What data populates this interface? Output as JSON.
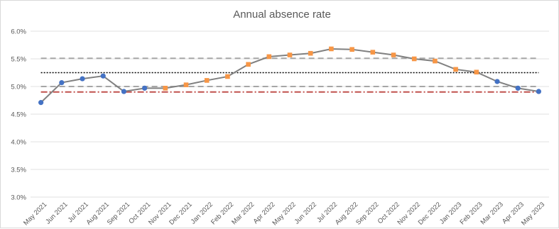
{
  "chart_data": {
    "type": "line",
    "title": "Annual absence rate",
    "xlabel": "",
    "ylabel": "",
    "categories": [
      "May 2021",
      "Jun 2021",
      "Jul 2021",
      "Aug 2021",
      "Sep 2021",
      "Oct 2021",
      "Nov 2021",
      "Dec 2021",
      "Jan 2022",
      "Feb 2022",
      "Mar 2022",
      "Apr 2022",
      "May 2022",
      "Jun 2022",
      "Jul 2022",
      "Aug 2022",
      "Sep 2022",
      "Oct 2022",
      "Nov 2022",
      "Dec 2022",
      "Jan 2023",
      "Feb 2023",
      "Mar 2023",
      "Apr 2023",
      "May 2023"
    ],
    "y_ticks": [
      "3.0%",
      "3.5%",
      "4.0%",
      "4.5%",
      "5.0%",
      "5.5%",
      "6.0%"
    ],
    "ylim": [
      0.03,
      0.06
    ],
    "grid": "horizontal",
    "series": [
      {
        "values": [
          0.0471,
          0.0507,
          0.0514,
          0.0519,
          0.0491,
          0.0497,
          0.0497,
          0.0503,
          0.0511,
          0.0518,
          0.054,
          0.0554,
          0.0557,
          0.056,
          0.0568,
          0.0567,
          0.0562,
          0.0557,
          0.055,
          0.0546,
          0.0531,
          0.0526,
          0.0509,
          0.0497,
          0.0491
        ],
        "marker_colors": [
          "#4472c4",
          "#4472c4",
          "#4472c4",
          "#4472c4",
          "#4472c4",
          "#4472c4",
          "#f79646",
          "#f79646",
          "#f79646",
          "#f79646",
          "#f79646",
          "#f79646",
          "#f79646",
          "#f79646",
          "#f79646",
          "#f79646",
          "#f79646",
          "#f79646",
          "#f79646",
          "#f79646",
          "#f79646",
          "#f79646",
          "#4472c4",
          "#4472c4",
          "#4472c4"
        ],
        "line_color": "#808080"
      }
    ],
    "reference_lines": [
      {
        "value": 0.0551,
        "color": "#a6a6a6",
        "style": "dashed"
      },
      {
        "value": 0.0525,
        "color": "#000000",
        "style": "dotted"
      },
      {
        "value": 0.05,
        "color": "#a6a6a6",
        "style": "dashed"
      },
      {
        "value": 0.049,
        "color": "#c0504d",
        "style": "dash-dot"
      }
    ]
  }
}
